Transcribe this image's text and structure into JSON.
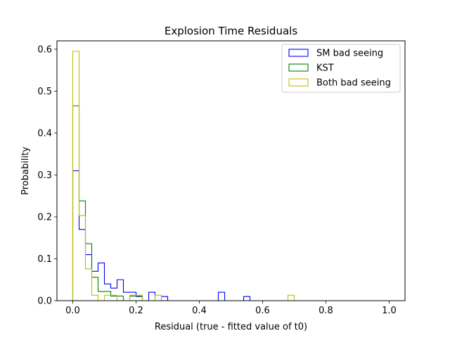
{
  "chart_data": {
    "type": "histogram",
    "title": "Explosion Time Residuals",
    "xlabel": "Residual (true - fitted value of t0)",
    "ylabel": "Probability",
    "xlim": [
      -0.05,
      1.05
    ],
    "ylim": [
      0,
      0.62
    ],
    "xticks": [
      0.0,
      0.2,
      0.4,
      0.6,
      0.8,
      1.0
    ],
    "xtick_labels": [
      "0.0",
      "0.2",
      "0.4",
      "0.6",
      "0.8",
      "1.0"
    ],
    "yticks": [
      0.0,
      0.1,
      0.2,
      0.3,
      0.4,
      0.5,
      0.6
    ],
    "ytick_labels": [
      "0.0",
      "0.1",
      "0.2",
      "0.3",
      "0.4",
      "0.5",
      "0.6"
    ],
    "bin_start": 0.0,
    "bin_width": 0.02,
    "grid": false,
    "legend_position": "top-right",
    "series": [
      {
        "name": "SM bad seeing",
        "color": "#0000ff",
        "values": [
          0.31,
          0.17,
          0.11,
          0.07,
          0.09,
          0.04,
          0.03,
          0.05,
          0.02,
          0.02,
          0.01,
          0,
          0.02,
          0,
          0.01,
          0,
          0,
          0,
          0,
          0,
          0,
          0,
          0,
          0.02,
          0,
          0,
          0,
          0.01,
          0,
          0,
          0,
          0,
          0,
          0,
          0,
          0,
          0,
          0,
          0,
          0,
          0,
          0,
          0,
          0,
          0,
          0,
          0,
          0,
          0,
          0
        ]
      },
      {
        "name": "KST",
        "color": "#008000",
        "values": [
          0.465,
          0.238,
          0.136,
          0.056,
          0.022,
          0.022,
          0.011,
          0.011,
          0,
          0.011,
          0.011,
          0,
          0,
          0,
          0,
          0,
          0,
          0,
          0,
          0,
          0,
          0,
          0,
          0,
          0,
          0,
          0,
          0,
          0,
          0,
          0,
          0,
          0,
          0,
          0,
          0,
          0,
          0,
          0,
          0,
          0,
          0,
          0,
          0,
          0,
          0,
          0,
          0,
          0,
          0
        ]
      },
      {
        "name": "Both bad seeing",
        "color": "#bfbf00",
        "values": [
          0.595,
          0.203,
          0.076,
          0.013,
          0,
          0.013,
          0.013,
          0,
          0,
          0.013,
          0.013,
          0,
          0,
          0.013,
          0,
          0,
          0,
          0,
          0,
          0,
          0,
          0,
          0,
          0,
          0,
          0,
          0,
          0,
          0,
          0,
          0,
          0,
          0,
          0,
          0.013,
          0,
          0,
          0,
          0,
          0,
          0,
          0,
          0,
          0,
          0,
          0,
          0,
          0,
          0,
          0
        ]
      }
    ]
  }
}
